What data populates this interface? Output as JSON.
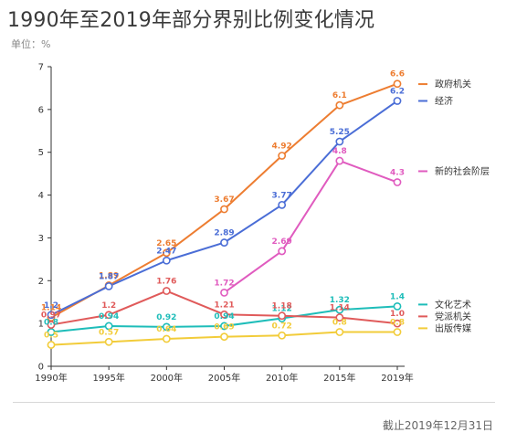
{
  "title": "1990年至2019年部分界别比例变化情况",
  "unit_label": "单位：%",
  "footer": "截止2019年12月31日",
  "chart_data": {
    "type": "line",
    "categories": [
      "1990年",
      "1995年",
      "2000年",
      "2005年",
      "2010年",
      "2015年",
      "2019年"
    ],
    "ylim": [
      0,
      7
    ],
    "yticks": [
      "0",
      "1",
      "2",
      "3",
      "4",
      "5",
      "6",
      "7"
    ],
    "legend_position": "right",
    "series": [
      {
        "name": "政府机关",
        "color": "#ed7d31",
        "values": [
          1.14,
          1.89,
          2.65,
          3.67,
          4.92,
          6.1,
          6.6
        ],
        "labels": [
          "1.14",
          "1.89",
          "2.65",
          "3.67",
          "4.92",
          "6.1",
          "6.6"
        ]
      },
      {
        "name": "经济",
        "color": "#4a6dd6",
        "values": [
          1.2,
          1.87,
          2.47,
          2.89,
          3.77,
          5.25,
          6.2
        ],
        "labels": [
          "1.2",
          "1.87",
          "2.47",
          "2.89",
          "3.77",
          "5.25",
          "6.2"
        ]
      },
      {
        "name": "新的社会阶层",
        "color": "#e05bbf",
        "values": [
          null,
          null,
          null,
          1.72,
          2.69,
          4.8,
          4.3
        ],
        "labels": [
          null,
          null,
          null,
          "1.72",
          "2.69",
          "4.8",
          "4.3"
        ]
      },
      {
        "name": "文化艺术",
        "color": "#1ebdb9",
        "values": [
          0.8,
          0.94,
          0.92,
          0.94,
          1.12,
          1.32,
          1.4
        ],
        "labels": [
          "0.8",
          "0.94",
          "0.92",
          "0.94",
          "1.12",
          "1.32",
          "1.4"
        ]
      },
      {
        "name": "党派机关",
        "color": "#e05a5a",
        "values": [
          0.97,
          1.2,
          1.76,
          1.21,
          1.18,
          1.14,
          1.0
        ],
        "labels": [
          "0.97",
          "1.2",
          "1.76",
          "1.21",
          "1.18",
          "1.14",
          "1.0"
        ]
      },
      {
        "name": "出版传媒",
        "color": "#f2cc3a",
        "values": [
          0.5,
          0.57,
          0.64,
          0.69,
          0.72,
          0.8,
          0.8
        ],
        "labels": [
          "0.5",
          "0.57",
          "0.64",
          "0.69",
          "0.72",
          "0.8",
          "0.8"
        ]
      }
    ],
    "legend": [
      {
        "series": "政府机关"
      },
      {
        "series": "经济"
      },
      {
        "series": "新的社会阶层"
      },
      {
        "series": "文化艺术"
      },
      {
        "series": "党派机关"
      },
      {
        "series": "出版传媒"
      }
    ]
  }
}
